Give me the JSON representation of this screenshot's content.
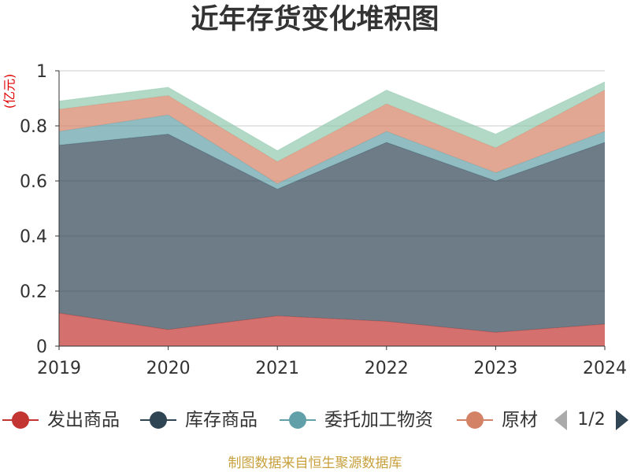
{
  "chart_data": {
    "type": "area",
    "stacked": true,
    "title": "近年存货变化堆积图",
    "xlabel": "",
    "ylabel": "(亿元)",
    "categories": [
      "2019",
      "2020",
      "2021",
      "2022",
      "2023",
      "2024"
    ],
    "ylim": [
      0,
      1
    ],
    "yticks": [
      0,
      0.2,
      0.4,
      0.6,
      0.8,
      1
    ],
    "grid": true,
    "legend": {
      "position": "bottom",
      "page": "1/2"
    },
    "series": [
      {
        "name": "发出商品",
        "color": "#c23531",
        "values": [
          0.12,
          0.06,
          0.11,
          0.09,
          0.05,
          0.08
        ]
      },
      {
        "name": "库存商品",
        "color": "#2f4554",
        "values": [
          0.61,
          0.71,
          0.46,
          0.65,
          0.55,
          0.66
        ]
      },
      {
        "name": "委托加工物资",
        "color": "#61a0a8",
        "values": [
          0.05,
          0.07,
          0.02,
          0.04,
          0.03,
          0.04
        ]
      },
      {
        "name": "原材",
        "color": "#d48265",
        "values": [
          0.08,
          0.07,
          0.08,
          0.1,
          0.09,
          0.15
        ]
      },
      {
        "color": "#91c7ae",
        "values": [
          0.03,
          0.03,
          0.04,
          0.05,
          0.05,
          0.03
        ]
      }
    ]
  },
  "footer": {
    "source_note": "制图数据来自恒生聚源数据库"
  }
}
